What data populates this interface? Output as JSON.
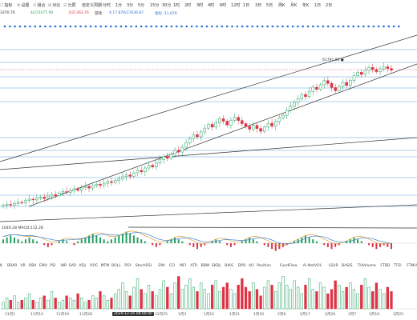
{
  "toolbar": {
    "items": [
      {
        "icon": "☐",
        "label": "指标"
      },
      {
        "icon": "⚙",
        "label": "设置"
      },
      {
        "icon": "☑",
        "label": "组合"
      },
      {
        "icon": "⊞",
        "label": "对比"
      },
      {
        "icon": "☰",
        "label": "分屏"
      },
      {
        "icon": "",
        "label": "自定义周期"
      },
      {
        "icon": "",
        "label": "分时"
      },
      {
        "icon": "",
        "label": "1分"
      },
      {
        "icon": "",
        "label": "3分"
      },
      {
        "icon": "",
        "label": "5分"
      },
      {
        "icon": "",
        "label": "15分"
      },
      {
        "icon": "",
        "label": "30分"
      },
      {
        "icon": "",
        "label": "1时"
      },
      {
        "icon": "",
        "label": "2时"
      },
      {
        "icon": "",
        "label": "3时"
      },
      {
        "icon": "",
        "label": "4时"
      },
      {
        "icon": "",
        "label": "6时"
      },
      {
        "icon": "",
        "label": "12时"
      },
      {
        "icon": "",
        "label": "1日"
      },
      {
        "icon": "",
        "label": "3日"
      },
      {
        "icon": "",
        "label": "5日"
      },
      {
        "icon": "",
        "label": "周K"
      },
      {
        "icon": "",
        "label": "月K"
      },
      {
        "icon": "",
        "label": "年K"
      },
      {
        "icon": "",
        "label": "1日"
      },
      {
        "icon": "",
        "label": "2日"
      }
    ]
  },
  "top_values": {
    "v1": "3370.76",
    "v2": "4s/15077.90",
    "v3": "3/21363.76",
    "v4": "游戏",
    "v5": "4:17.876/17636.87",
    "v6": "指标 :11.876"
  },
  "price_panel": {
    "peak_label": "61791.83 ●",
    "colors": {
      "up": "#22a060",
      "down": "#dd3344",
      "hline": "#5aa0e6",
      "trend": "#333333",
      "dashed": "#e06070",
      "dots": "#2a6fd6"
    }
  },
  "macd_label": "1649.28  MACD:112.28",
  "indicator_tabs": [
    "K",
    "BRAR",
    "VR",
    "OBV",
    "EMV",
    "PSI",
    "WR",
    "SAR",
    "KDJ",
    "ROC",
    "MTM",
    "BOLL",
    "PSY",
    "StochRSI",
    "EMI",
    "CCI",
    "MFI",
    "ATR",
    "BBW",
    "SKDJ",
    "BIAS",
    "DPO",
    "AO",
    "Position",
    "FundFlow",
    "Ai-NetVOL",
    "LSUR",
    "BASIS",
    "THVolume",
    "FTBD",
    "TTSI",
    "FTMU",
    "Ai-BBI",
    "MLR",
    "Ai-PO",
    "Ai-PDI",
    "Ai-LI",
    "P"
  ],
  "x_axis": [
    "11月1",
    "11月10",
    "11月19",
    "11月28",
    "2020-12-16 08:00:00",
    "12月25",
    "1月3",
    "1月12",
    "1月21",
    "1月30",
    "2月8",
    "2月17",
    "2月26",
    "3月7",
    "3月16",
    "3月25"
  ],
  "chart_data": {
    "type": "candlestick",
    "title": "",
    "xlabel": "",
    "ylabel": "",
    "x_ticks": [
      "11月1",
      "11月10",
      "11月19",
      "11月28",
      "12月16",
      "12月25",
      "1月3",
      "1月12",
      "1月21",
      "1月30",
      "2月8",
      "2月17",
      "2月26",
      "3月7",
      "3月16",
      "3月25"
    ],
    "peak_label": "61791.83",
    "candles_ohlc_relative": "see close series",
    "close_trend": [
      13.2,
      13.5,
      13.3,
      13.8,
      14.1,
      14.0,
      14.6,
      15.0,
      14.8,
      15.3,
      15.6,
      15.2,
      15.9,
      16.3,
      16.0,
      16.8,
      17.2,
      17.0,
      17.5,
      18.0,
      17.6,
      18.3,
      18.7,
      18.2,
      18.9,
      19.3,
      19.0,
      19.6,
      20.1,
      19.8,
      20.4,
      20.9,
      21.5,
      22.0,
      21.6,
      22.6,
      23.3,
      22.9,
      24.0,
      24.8,
      24.3,
      25.5,
      26.4,
      27.3,
      26.8,
      28.0,
      29.1,
      28.6,
      30.0,
      31.2,
      32.5,
      33.6,
      33.0,
      34.4,
      35.5,
      36.6,
      35.8,
      37.0,
      38.2,
      37.5,
      36.4,
      37.8,
      38.6,
      37.7,
      36.8,
      36.0,
      35.2,
      36.3,
      35.4,
      34.6,
      35.8,
      36.9,
      36.1,
      37.4,
      38.5,
      39.2,
      40.6,
      41.8,
      42.9,
      44.0,
      45.2,
      44.6,
      46.1,
      47.3,
      46.7,
      48.0,
      49.2,
      48.4,
      47.2,
      46.3,
      47.5,
      48.7,
      47.8,
      49.3,
      50.6,
      51.6,
      51.0,
      52.2,
      53.0,
      52.4,
      51.8,
      52.6,
      53.2,
      52.7,
      52.2
    ],
    "macd_hist": [
      2,
      3,
      4,
      3,
      2,
      1,
      2,
      3,
      2,
      1,
      0,
      -1,
      -2,
      -1,
      0,
      1,
      2,
      1,
      0,
      -1,
      1,
      2,
      3,
      4,
      5,
      4,
      3,
      2,
      1,
      2,
      3,
      4,
      5,
      6,
      5,
      4,
      3,
      2,
      1,
      0,
      -1,
      -2,
      -1,
      0,
      1,
      2,
      3,
      2,
      1,
      0,
      -1,
      -2,
      -3,
      -2,
      -1,
      0,
      1,
      2,
      1,
      0,
      -1,
      -2,
      -1,
      0,
      1,
      2,
      3,
      2,
      1,
      0,
      -1,
      -2,
      -3,
      -4,
      -3,
      -2,
      -1,
      0,
      1,
      2,
      3,
      4,
      3,
      2,
      1,
      0,
      -1,
      -2,
      -3,
      -2,
      -1,
      0,
      1,
      2,
      3,
      2,
      1,
      0,
      -1,
      -2,
      -3,
      -2,
      -1,
      -2,
      -3
    ],
    "volume": [
      3,
      5,
      4,
      6,
      3,
      4,
      5,
      7,
      4,
      3,
      5,
      6,
      4,
      8,
      5,
      3,
      4,
      6,
      5,
      4,
      7,
      5,
      3,
      4,
      6,
      5,
      8,
      6,
      4,
      5,
      7,
      9,
      12,
      8,
      6,
      10,
      14,
      9,
      7,
      11,
      8,
      6,
      9,
      13,
      10,
      7,
      12,
      15,
      9,
      11,
      14,
      10,
      8,
      12,
      9,
      7,
      11,
      13,
      8,
      10,
      12,
      9,
      7,
      11,
      14,
      10,
      8,
      12,
      9,
      6,
      10,
      13,
      11,
      8,
      12,
      15,
      11,
      9,
      13,
      10,
      7,
      11,
      14,
      9,
      8,
      12,
      10,
      7,
      9,
      13,
      11,
      8,
      10,
      12,
      9,
      7,
      11,
      14,
      10,
      8,
      12,
      9,
      7,
      10,
      8
    ]
  }
}
